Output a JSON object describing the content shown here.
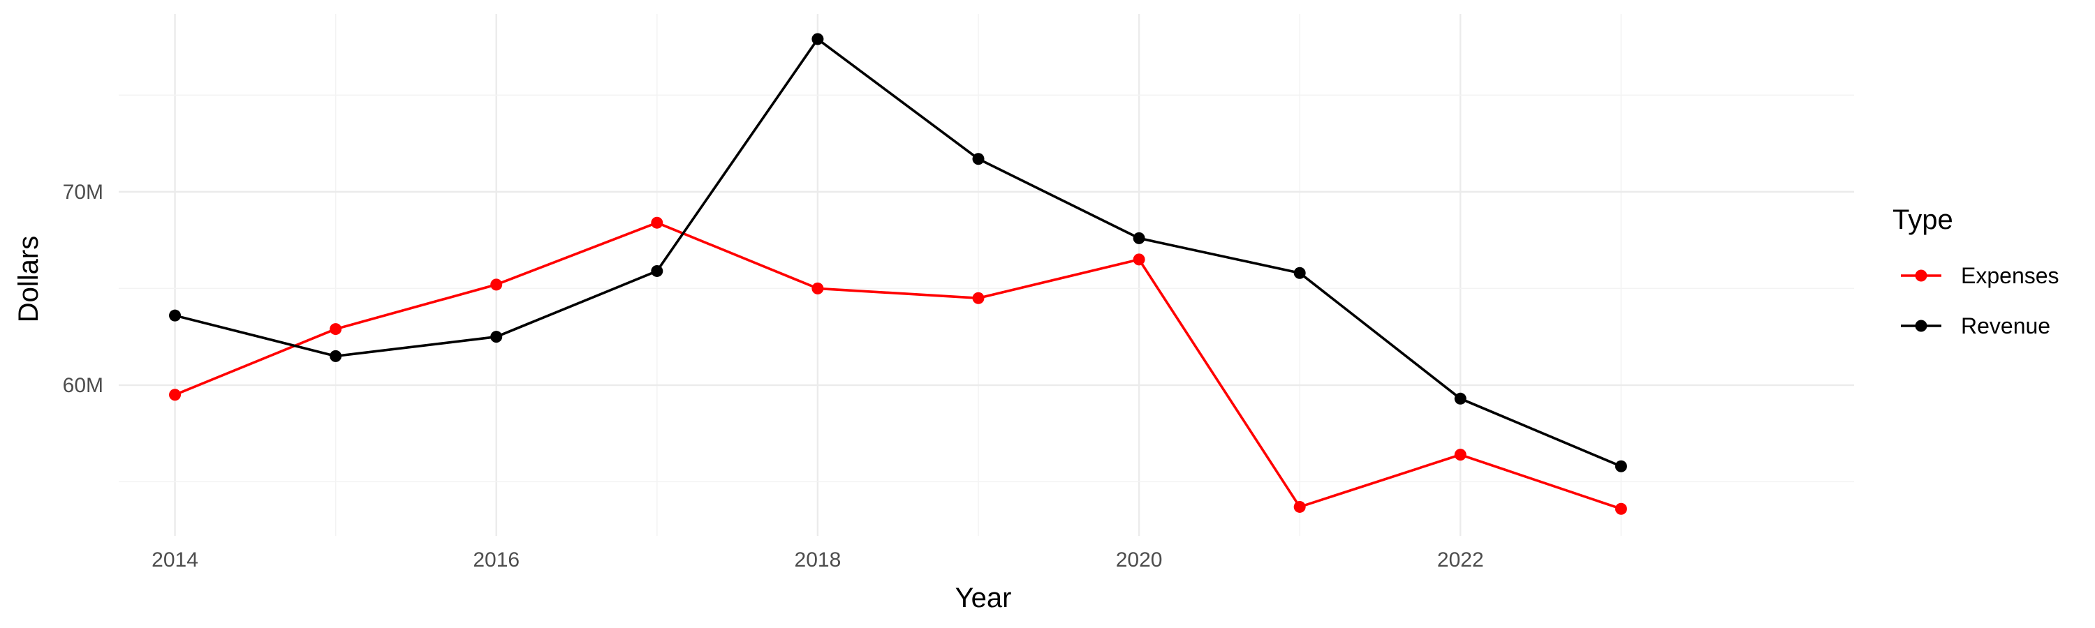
{
  "chart_data": {
    "type": "line",
    "xlabel": "Year",
    "ylabel": "Dollars",
    "x": [
      2014,
      2015,
      2016,
      2017,
      2018,
      2019,
      2020,
      2021,
      2022,
      2023
    ],
    "xlim": [
      2013.65,
      2024.45
    ],
    "ylim": [
      52.2,
      79.2
    ],
    "x_ticks": [
      2014,
      2016,
      2018,
      2020,
      2022
    ],
    "x_tick_labels": [
      "2014",
      "2016",
      "2018",
      "2020",
      "2022"
    ],
    "y_ticks": [
      60,
      70
    ],
    "y_tick_labels": [
      "60M",
      "70M"
    ],
    "y_unit": "millions of dollars",
    "grid": true,
    "legend": {
      "title": "Type",
      "position": "right"
    },
    "series": [
      {
        "name": "Expenses",
        "color": "#ff0000",
        "values": [
          59.5,
          62.9,
          65.2,
          68.4,
          65.0,
          64.5,
          66.5,
          53.7,
          56.4,
          53.6
        ]
      },
      {
        "name": "Revenue",
        "color": "#000000",
        "values": [
          63.6,
          61.5,
          62.5,
          65.9,
          77.9,
          71.7,
          67.6,
          65.8,
          59.3,
          55.8
        ]
      }
    ]
  }
}
